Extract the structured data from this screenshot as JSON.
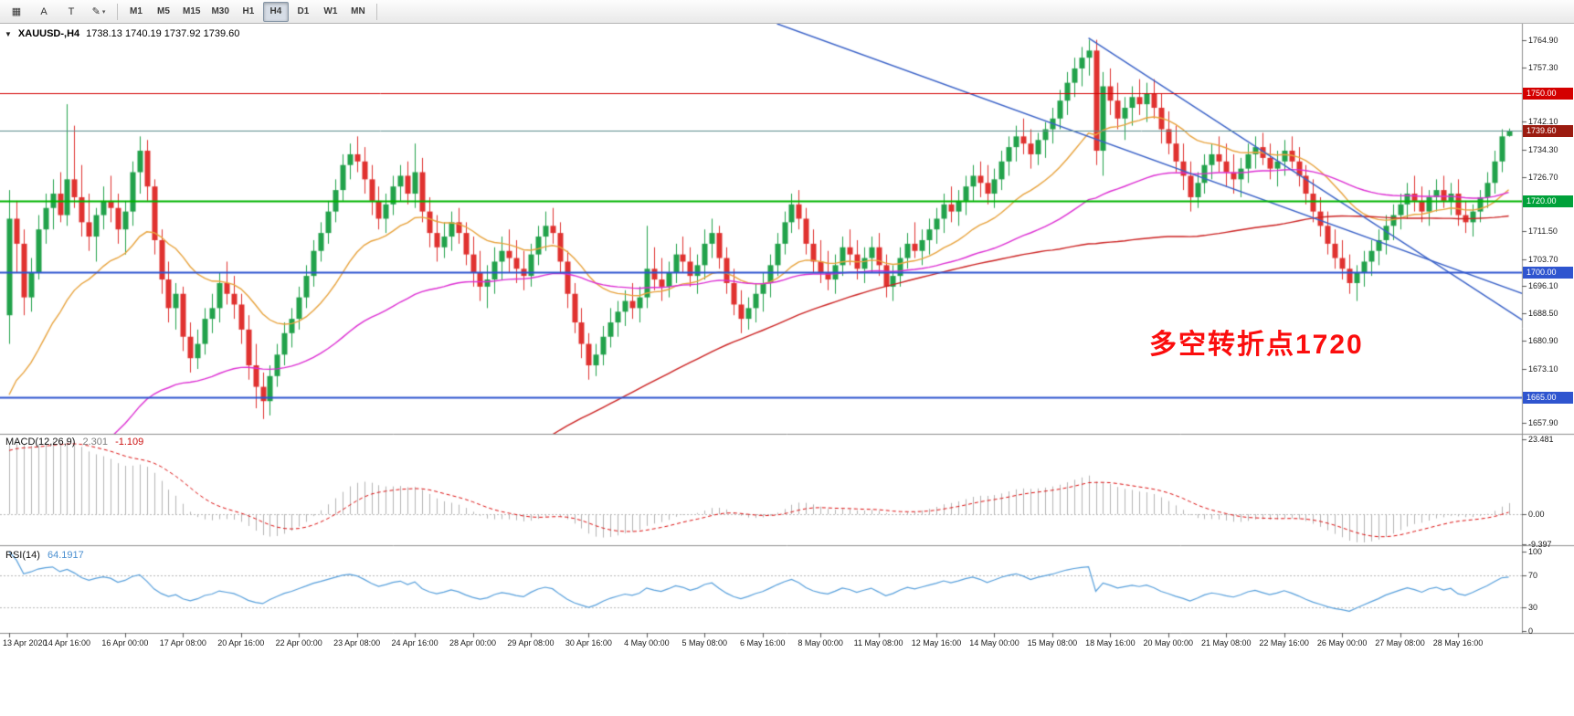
{
  "toolbar": {
    "tools": [
      {
        "name": "grid-tool-icon",
        "glyph": "▦",
        "dropdown": false
      },
      {
        "name": "font-tool-button",
        "glyph": "A",
        "dropdown": false
      },
      {
        "name": "text-tool-button",
        "glyph": "T",
        "dropdown": false
      },
      {
        "name": "drawing-tools-dropdown-button",
        "glyph": "✎",
        "dropdown": true
      }
    ],
    "timeframes": [
      {
        "label": "M1",
        "active": false
      },
      {
        "label": "M5",
        "active": false
      },
      {
        "label": "M15",
        "active": false
      },
      {
        "label": "M30",
        "active": false
      },
      {
        "label": "H1",
        "active": false
      },
      {
        "label": "H4",
        "active": true
      },
      {
        "label": "D1",
        "active": false
      },
      {
        "label": "W1",
        "active": false
      },
      {
        "label": "MN",
        "active": false
      }
    ]
  },
  "chart": {
    "dropdown_glyph": "▼",
    "symbol_title": "XAUUSD-,H4",
    "ohlc_text": "1738.13 1740.19 1737.92 1739.60"
  },
  "price_scale": {
    "ticks": [
      1764.9,
      1757.3,
      1742.1,
      1734.3,
      1726.7,
      1711.5,
      1703.7,
      1696.1,
      1688.5,
      1680.9,
      1673.1,
      1657.9
    ],
    "badges": [
      {
        "label": "1750.00",
        "price": 1750,
        "color": "#d40000"
      },
      {
        "label": "1739.60",
        "price": 1739.6,
        "color": "#9b1b10"
      },
      {
        "label": "1720.00",
        "price": 1720,
        "color": "#00a13a"
      },
      {
        "label": "1700.00",
        "price": 1700,
        "color": "#2f55cf"
      },
      {
        "label": "1665.00",
        "price": 1665,
        "color": "#2f55cf"
      }
    ]
  },
  "chart_data": {
    "type": "candlestick",
    "symbol": "XAUUSD-",
    "timeframe": "H4",
    "current_price": 1739.6,
    "price_axis_visible_range": [
      1654.8,
      1769.5
    ],
    "label_every": 8,
    "x_labels": [
      "13 Apr 2020",
      "14 Apr 16:00",
      "16 Apr 00:00",
      "17 Apr 08:00",
      "20 Apr 16:00",
      "22 Apr 00:00",
      "23 Apr 08:00",
      "24 Apr 16:00",
      "28 Apr 00:00",
      "29 Apr 08:00",
      "30 Apr 16:00",
      "4 May 00:00",
      "5 May 08:00",
      "6 May 16:00",
      "8 May 00:00",
      "11 May 08:00",
      "12 May 16:00",
      "14 May 00:00",
      "15 May 08:00",
      "18 May 16:00",
      "20 May 00:00",
      "21 May 08:00",
      "22 May 16:00",
      "26 May 00:00",
      "27 May 08:00",
      "28 May 16:00"
    ],
    "levels": [
      {
        "price": 1750,
        "color": "#d40000",
        "width": 1
      },
      {
        "price": 1720,
        "color": "#00b400",
        "width": 2
      },
      {
        "price": 1700,
        "color": "#2f55cf",
        "width": 2
      },
      {
        "price": 1665,
        "color": "#2f55cf",
        "width": 2
      }
    ],
    "trendlines": [
      {
        "i1": 106,
        "p1": 1769.5,
        "i2": 209,
        "p2": 1694
      },
      {
        "i1": 149,
        "p1": 1765.5,
        "i2": 209,
        "p2": 1686.5
      }
    ],
    "moving_averages": [
      {
        "name": "ma-fast-orange",
        "method": "ema",
        "period": 20,
        "color": "#e8a33d"
      },
      {
        "name": "ma-mid-magenta",
        "method": "ema",
        "period": 60,
        "color": "#dd2fd3"
      },
      {
        "name": "ma-slow-red",
        "method": "sma",
        "period": 144,
        "color": "#cc2222"
      }
    ],
    "indicator_preroll": {
      "down_bars": 70,
      "start": 1648,
      "low": 1472,
      "up_bars": 130,
      "end": 1690
    },
    "macd": {
      "label": "MACD(12,26,9)",
      "value_main": "2.301",
      "value_signal": "-1.109",
      "hist_color": "#b3b3b3",
      "signal_color": "#dd1111",
      "range": [
        -9.397,
        23.481
      ],
      "scale_ticks": [
        {
          "label": "23.481",
          "value": 23.481
        },
        {
          "label": "0.00",
          "value": 0
        },
        {
          "label": "-9.397",
          "value": -9.397
        }
      ]
    },
    "rsi": {
      "label": "RSI(14)",
      "value": "64.1917",
      "color": "#58a0dc",
      "levels": [
        70,
        30
      ],
      "scale_ticks": [
        {
          "label": "100",
          "value": 100
        },
        {
          "label": "70",
          "value": 70
        },
        {
          "label": "30",
          "value": 30
        },
        {
          "label": "0",
          "value": 0
        }
      ]
    },
    "annotation": {
      "text": "多空转折点1720",
      "color": "#fb0d0d"
    },
    "style": {
      "bull": "#22a24b",
      "bear": "#e03230",
      "trendline": "#3a62c8",
      "current_line": "#5c8d8d"
    },
    "ohlc": [
      [
        1688,
        1723,
        1680,
        1715
      ],
      [
        1715,
        1720,
        1700,
        1708
      ],
      [
        1708,
        1712,
        1688,
        1693
      ],
      [
        1693,
        1704,
        1689,
        1700
      ],
      [
        1700,
        1716,
        1698,
        1712
      ],
      [
        1712,
        1722,
        1708,
        1718
      ],
      [
        1718,
        1726,
        1712,
        1722
      ],
      [
        1722,
        1728,
        1714,
        1716
      ],
      [
        1716,
        1747,
        1713,
        1726
      ],
      [
        1726,
        1741,
        1718,
        1721
      ],
      [
        1721,
        1730,
        1710,
        1714
      ],
      [
        1714,
        1722,
        1706,
        1710
      ],
      [
        1710,
        1718,
        1703,
        1716
      ],
      [
        1716,
        1724,
        1712,
        1720
      ],
      [
        1720,
        1727,
        1714,
        1718
      ],
      [
        1718,
        1722,
        1708,
        1712
      ],
      [
        1712,
        1720,
        1705,
        1717
      ],
      [
        1717,
        1731,
        1713,
        1728
      ],
      [
        1728,
        1738,
        1722,
        1734
      ],
      [
        1734,
        1737,
        1720,
        1724
      ],
      [
        1724,
        1726,
        1705,
        1709
      ],
      [
        1709,
        1712,
        1694,
        1698
      ],
      [
        1698,
        1703,
        1686,
        1690
      ],
      [
        1690,
        1697,
        1684,
        1694
      ],
      [
        1694,
        1696,
        1678,
        1682
      ],
      [
        1682,
        1686,
        1672,
        1676
      ],
      [
        1676,
        1684,
        1673,
        1680
      ],
      [
        1680,
        1690,
        1677,
        1687
      ],
      [
        1687,
        1694,
        1683,
        1690
      ],
      [
        1690,
        1700,
        1686,
        1697
      ],
      [
        1697,
        1703,
        1691,
        1694
      ],
      [
        1694,
        1699,
        1687,
        1691
      ],
      [
        1691,
        1694,
        1680,
        1684
      ],
      [
        1684,
        1688,
        1670,
        1674
      ],
      [
        1674,
        1680,
        1662,
        1668
      ],
      [
        1668,
        1672,
        1659,
        1664
      ],
      [
        1664,
        1674,
        1660,
        1671
      ],
      [
        1671,
        1680,
        1668,
        1677
      ],
      [
        1677,
        1686,
        1674,
        1683
      ],
      [
        1683,
        1690,
        1679,
        1687
      ],
      [
        1687,
        1696,
        1684,
        1693
      ],
      [
        1693,
        1702,
        1690,
        1699
      ],
      [
        1699,
        1709,
        1696,
        1706
      ],
      [
        1706,
        1714,
        1703,
        1711
      ],
      [
        1711,
        1720,
        1708,
        1717
      ],
      [
        1717,
        1726,
        1714,
        1723
      ],
      [
        1723,
        1733,
        1720,
        1730
      ],
      [
        1730,
        1736,
        1726,
        1733
      ],
      [
        1733,
        1738,
        1728,
        1731
      ],
      [
        1731,
        1735,
        1722,
        1726
      ],
      [
        1726,
        1730,
        1716,
        1720
      ],
      [
        1720,
        1724,
        1712,
        1715
      ],
      [
        1715,
        1722,
        1711,
        1719
      ],
      [
        1719,
        1727,
        1716,
        1724
      ],
      [
        1724,
        1730,
        1720,
        1727
      ],
      [
        1727,
        1731,
        1719,
        1722
      ],
      [
        1722,
        1736,
        1718,
        1728
      ],
      [
        1728,
        1732,
        1714,
        1717
      ],
      [
        1717,
        1721,
        1707,
        1711
      ],
      [
        1711,
        1716,
        1703,
        1707
      ],
      [
        1707,
        1714,
        1704,
        1710
      ],
      [
        1710,
        1717,
        1706,
        1714
      ],
      [
        1714,
        1718,
        1708,
        1711
      ],
      [
        1711,
        1714,
        1702,
        1705
      ],
      [
        1705,
        1710,
        1696,
        1700
      ],
      [
        1700,
        1706,
        1692,
        1696
      ],
      [
        1696,
        1702,
        1690,
        1698
      ],
      [
        1698,
        1707,
        1694,
        1703
      ],
      [
        1703,
        1710,
        1698,
        1706
      ],
      [
        1706,
        1712,
        1700,
        1704
      ],
      [
        1704,
        1709,
        1697,
        1701
      ],
      [
        1701,
        1706,
        1695,
        1699
      ],
      [
        1699,
        1708,
        1696,
        1705
      ],
      [
        1705,
        1713,
        1702,
        1710
      ],
      [
        1710,
        1717,
        1706,
        1713
      ],
      [
        1713,
        1718,
        1708,
        1711
      ],
      [
        1711,
        1714,
        1700,
        1703
      ],
      [
        1703,
        1706,
        1690,
        1694
      ],
      [
        1694,
        1697,
        1683,
        1686
      ],
      [
        1686,
        1690,
        1676,
        1680
      ],
      [
        1680,
        1683,
        1670,
        1674
      ],
      [
        1674,
        1680,
        1671,
        1677
      ],
      [
        1677,
        1685,
        1674,
        1682
      ],
      [
        1682,
        1690,
        1679,
        1686
      ],
      [
        1686,
        1692,
        1682,
        1689
      ],
      [
        1689,
        1695,
        1685,
        1692
      ],
      [
        1692,
        1697,
        1687,
        1690
      ],
      [
        1690,
        1696,
        1686,
        1693
      ],
      [
        1693,
        1713,
        1690,
        1701
      ],
      [
        1701,
        1707,
        1695,
        1698
      ],
      [
        1698,
        1704,
        1692,
        1696
      ],
      [
        1696,
        1703,
        1693,
        1700
      ],
      [
        1700,
        1708,
        1697,
        1705
      ],
      [
        1705,
        1710,
        1700,
        1703
      ],
      [
        1703,
        1707,
        1696,
        1699
      ],
      [
        1699,
        1705,
        1694,
        1702
      ],
      [
        1702,
        1712,
        1698,
        1708
      ],
      [
        1708,
        1715,
        1704,
        1711
      ],
      [
        1711,
        1713,
        1701,
        1704
      ],
      [
        1704,
        1707,
        1694,
        1697
      ],
      [
        1697,
        1701,
        1688,
        1691
      ],
      [
        1691,
        1695,
        1683,
        1687
      ],
      [
        1687,
        1693,
        1684,
        1690
      ],
      [
        1690,
        1697,
        1686,
        1694
      ],
      [
        1694,
        1700,
        1689,
        1697
      ],
      [
        1697,
        1705,
        1693,
        1702
      ],
      [
        1702,
        1711,
        1699,
        1708
      ],
      [
        1708,
        1717,
        1705,
        1714
      ],
      [
        1714,
        1722,
        1711,
        1719
      ],
      [
        1719,
        1723,
        1712,
        1715
      ],
      [
        1715,
        1718,
        1705,
        1708
      ],
      [
        1708,
        1712,
        1700,
        1703
      ],
      [
        1703,
        1709,
        1697,
        1700
      ],
      [
        1700,
        1706,
        1695,
        1698
      ],
      [
        1698,
        1705,
        1694,
        1702
      ],
      [
        1702,
        1710,
        1699,
        1707
      ],
      [
        1707,
        1712,
        1702,
        1705
      ],
      [
        1705,
        1709,
        1698,
        1701
      ],
      [
        1701,
        1707,
        1697,
        1704
      ],
      [
        1704,
        1710,
        1700,
        1707
      ],
      [
        1707,
        1711,
        1699,
        1702
      ],
      [
        1702,
        1705,
        1693,
        1696
      ],
      [
        1696,
        1702,
        1692,
        1699
      ],
      [
        1699,
        1707,
        1696,
        1704
      ],
      [
        1704,
        1711,
        1701,
        1708
      ],
      [
        1708,
        1714,
        1704,
        1706
      ],
      [
        1706,
        1712,
        1702,
        1709
      ],
      [
        1709,
        1715,
        1705,
        1712
      ],
      [
        1712,
        1718,
        1708,
        1715
      ],
      [
        1715,
        1722,
        1711,
        1719
      ],
      [
        1719,
        1724,
        1714,
        1717
      ],
      [
        1717,
        1723,
        1713,
        1720
      ],
      [
        1720,
        1727,
        1716,
        1724
      ],
      [
        1724,
        1730,
        1720,
        1727
      ],
      [
        1727,
        1731,
        1721,
        1725
      ],
      [
        1725,
        1730,
        1719,
        1722
      ],
      [
        1722,
        1729,
        1718,
        1726
      ],
      [
        1726,
        1734,
        1723,
        1731
      ],
      [
        1731,
        1738,
        1727,
        1735
      ],
      [
        1735,
        1741,
        1731,
        1738
      ],
      [
        1738,
        1743,
        1733,
        1736
      ],
      [
        1736,
        1740,
        1729,
        1733
      ],
      [
        1733,
        1739,
        1730,
        1737
      ],
      [
        1737,
        1742,
        1732,
        1740
      ],
      [
        1740,
        1746,
        1736,
        1743
      ],
      [
        1743,
        1751,
        1740,
        1748
      ],
      [
        1748,
        1756,
        1744,
        1753
      ],
      [
        1753,
        1760,
        1749,
        1757
      ],
      [
        1757,
        1763,
        1752,
        1760
      ],
      [
        1760,
        1765,
        1755,
        1762
      ],
      [
        1762,
        1765,
        1730,
        1734
      ],
      [
        1734,
        1756,
        1727,
        1752
      ],
      [
        1752,
        1757,
        1744,
        1748
      ],
      [
        1748,
        1753,
        1740,
        1743
      ],
      [
        1743,
        1749,
        1737,
        1746
      ],
      [
        1746,
        1752,
        1741,
        1749
      ],
      [
        1749,
        1754,
        1744,
        1747
      ],
      [
        1747,
        1753,
        1742,
        1750
      ],
      [
        1750,
        1754,
        1743,
        1746
      ],
      [
        1746,
        1750,
        1736,
        1740
      ],
      [
        1740,
        1745,
        1733,
        1736
      ],
      [
        1736,
        1741,
        1728,
        1731
      ],
      [
        1731,
        1736,
        1723,
        1727
      ],
      [
        1727,
        1731,
        1717,
        1721
      ],
      [
        1721,
        1728,
        1718,
        1725
      ],
      [
        1725,
        1733,
        1722,
        1730
      ],
      [
        1730,
        1736,
        1726,
        1733
      ],
      [
        1733,
        1738,
        1728,
        1731
      ],
      [
        1731,
        1736,
        1724,
        1728
      ],
      [
        1728,
        1733,
        1722,
        1726
      ],
      [
        1726,
        1732,
        1721,
        1729
      ],
      [
        1729,
        1736,
        1725,
        1733
      ],
      [
        1733,
        1738,
        1729,
        1735
      ],
      [
        1735,
        1739,
        1730,
        1732
      ],
      [
        1732,
        1736,
        1726,
        1729
      ],
      [
        1729,
        1734,
        1724,
        1731
      ],
      [
        1731,
        1737,
        1727,
        1734
      ],
      [
        1734,
        1738,
        1729,
        1731
      ],
      [
        1731,
        1735,
        1724,
        1727
      ],
      [
        1727,
        1730,
        1719,
        1722
      ],
      [
        1722,
        1726,
        1714,
        1717
      ],
      [
        1717,
        1721,
        1710,
        1713
      ],
      [
        1713,
        1717,
        1705,
        1708
      ],
      [
        1708,
        1712,
        1701,
        1704
      ],
      [
        1704,
        1709,
        1698,
        1701
      ],
      [
        1701,
        1705,
        1694,
        1697
      ],
      [
        1697,
        1702,
        1692,
        1700
      ],
      [
        1700,
        1706,
        1696,
        1703
      ],
      [
        1703,
        1709,
        1699,
        1706
      ],
      [
        1706,
        1712,
        1702,
        1709
      ],
      [
        1709,
        1716,
        1705,
        1713
      ],
      [
        1713,
        1719,
        1709,
        1716
      ],
      [
        1716,
        1722,
        1712,
        1719
      ],
      [
        1719,
        1725,
        1715,
        1722
      ],
      [
        1722,
        1727,
        1717,
        1720
      ],
      [
        1720,
        1724,
        1714,
        1717
      ],
      [
        1717,
        1723,
        1713,
        1721
      ],
      [
        1721,
        1726,
        1717,
        1723
      ],
      [
        1723,
        1727,
        1718,
        1720
      ],
      [
        1720,
        1725,
        1716,
        1722
      ],
      [
        1722,
        1726,
        1713,
        1716
      ],
      [
        1716,
        1720,
        1711,
        1714
      ],
      [
        1714,
        1719,
        1710,
        1717
      ],
      [
        1717,
        1723,
        1714,
        1721
      ],
      [
        1721,
        1728,
        1718,
        1725
      ],
      [
        1725,
        1734,
        1722,
        1731
      ],
      [
        1731,
        1740,
        1728,
        1738
      ],
      [
        1738.13,
        1740.19,
        1737.92,
        1739.6
      ]
    ]
  }
}
